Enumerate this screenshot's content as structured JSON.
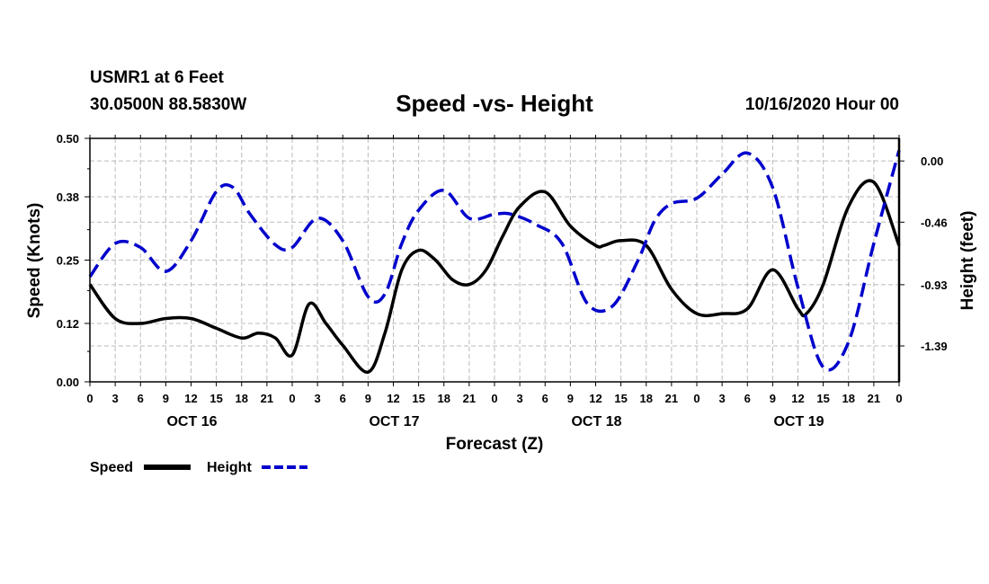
{
  "header": {
    "station": "USMR1 at 6 Feet",
    "coords": "30.0500N 88.5830W",
    "title": "Speed -vs- Height",
    "datetime": "10/16/2020 Hour 00"
  },
  "colors": {
    "speed": "#000000",
    "height": "#0000cc",
    "grid": "#bbbbbb"
  },
  "chart_data": {
    "type": "line",
    "title": "Speed -vs- Height",
    "xlabel": "Forecast (Z)",
    "ylabel": "Speed (Knots)",
    "y2label": "Height (feet)",
    "x_range": [
      0,
      96
    ],
    "x_unit": "hours since 10/16/2020 00Z",
    "x_tick_labels": [
      "0",
      "3",
      "6",
      "9",
      "12",
      "15",
      "18",
      "21",
      "0",
      "3",
      "6",
      "9",
      "12",
      "15",
      "18",
      "21",
      "0",
      "3",
      "6",
      "9",
      "12",
      "15",
      "18",
      "21",
      "0",
      "3",
      "6",
      "9",
      "12",
      "15",
      "18",
      "21",
      "0"
    ],
    "day_labels": [
      {
        "label": "OCT 16",
        "hour": 12
      },
      {
        "label": "OCT 17",
        "hour": 36
      },
      {
        "label": "OCT 18",
        "hour": 60
      },
      {
        "label": "OCT 19",
        "hour": 84
      }
    ],
    "ylim": [
      0.0,
      0.5
    ],
    "y_ticks": [
      "0.00",
      "0.12",
      "0.25",
      "0.38",
      "0.50"
    ],
    "y2lim": [
      -1.66,
      0.17
    ],
    "y2_ticks": [
      "0.00",
      "-0.46",
      "-0.93",
      "-1.39"
    ],
    "grid": true,
    "series": [
      {
        "name": "Speed",
        "axis": "left",
        "style": "solid",
        "x": [
          0,
          3,
          6,
          9,
          12,
          15,
          18,
          20,
          22,
          24,
          26,
          28,
          30,
          33,
          35,
          37,
          39,
          41,
          43,
          45,
          47,
          49,
          51,
          54,
          57,
          60,
          61,
          63,
          66,
          69,
          72,
          75,
          78,
          81,
          84,
          85,
          87,
          90,
          93,
          96
        ],
        "values": [
          0.2,
          0.13,
          0.12,
          0.13,
          0.13,
          0.11,
          0.09,
          0.1,
          0.09,
          0.055,
          0.16,
          0.12,
          0.075,
          0.02,
          0.1,
          0.23,
          0.27,
          0.25,
          0.21,
          0.2,
          0.23,
          0.3,
          0.36,
          0.39,
          0.32,
          0.28,
          0.28,
          0.29,
          0.28,
          0.19,
          0.14,
          0.14,
          0.15,
          0.23,
          0.15,
          0.14,
          0.2,
          0.36,
          0.41,
          0.28
        ]
      },
      {
        "name": "Height",
        "axis": "right",
        "style": "dashed",
        "x": [
          0,
          3,
          6,
          9,
          12,
          15,
          17,
          19,
          22,
          24,
          27,
          30,
          33,
          35,
          37,
          39,
          42,
          45,
          48,
          50,
          53,
          56,
          59,
          62,
          65,
          67,
          69,
          72,
          75,
          78,
          81,
          84,
          87,
          90,
          93,
          96
        ],
        "values": [
          -0.87,
          -0.62,
          -0.65,
          -0.83,
          -0.6,
          -0.23,
          -0.2,
          -0.4,
          -0.63,
          -0.65,
          -0.43,
          -0.6,
          -1.02,
          -1.0,
          -0.62,
          -0.37,
          -0.22,
          -0.43,
          -0.4,
          -0.4,
          -0.48,
          -0.62,
          -1.07,
          -1.09,
          -0.75,
          -0.45,
          -0.32,
          -0.28,
          -0.1,
          0.06,
          -0.2,
          -0.95,
          -1.55,
          -1.36,
          -0.62,
          0.08
        ]
      }
    ]
  },
  "legend": {
    "speed_label": "Speed",
    "height_label": "Height"
  }
}
